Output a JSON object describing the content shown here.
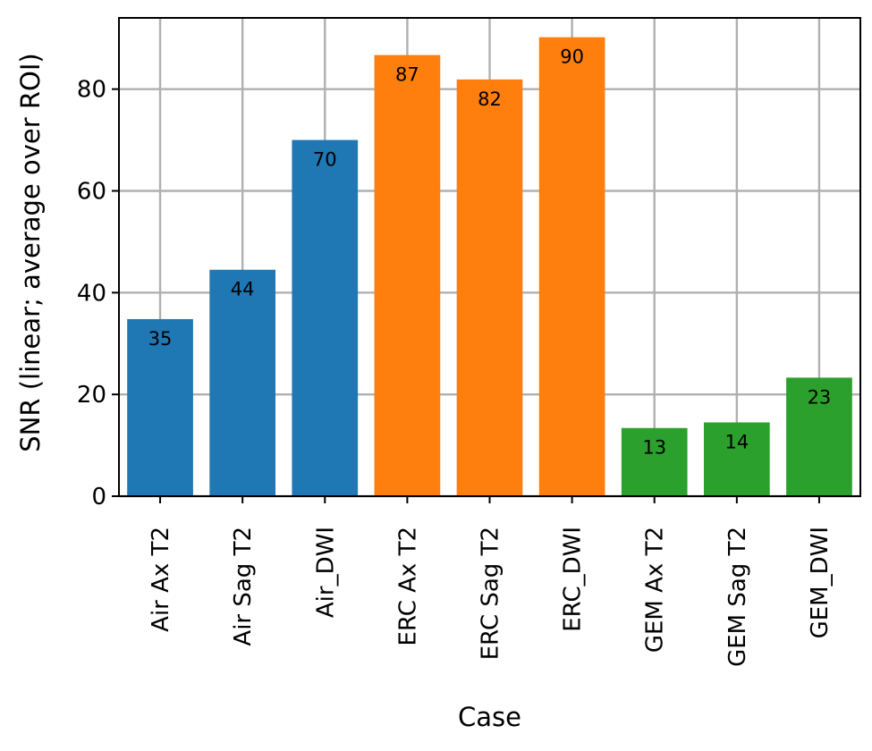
{
  "chart_data": {
    "type": "bar",
    "title": "",
    "xlabel": "Case",
    "ylabel": "SNR (linear; average over ROI)",
    "ylim": [
      0,
      94
    ],
    "yticks": [
      0,
      20,
      40,
      60,
      80
    ],
    "grid": true,
    "categories": [
      "Air Ax T2",
      "Air Sag T2",
      "Air_DWI",
      "ERC Ax T2",
      "ERC Sag T2",
      "ERC_DWI",
      "GEM Ax T2",
      "GEM Sag T2",
      "GEM_DWI"
    ],
    "values": [
      34.8,
      44.5,
      70.0,
      86.7,
      81.9,
      90.2,
      13.4,
      14.5,
      23.3
    ],
    "data_labels": [
      "35",
      "44",
      "70",
      "87",
      "82",
      "90",
      "13",
      "14",
      "23"
    ],
    "colors": [
      "#1f77b4",
      "#1f77b4",
      "#1f77b4",
      "#ff7f0e",
      "#ff7f0e",
      "#ff7f0e",
      "#2ca02c",
      "#2ca02c",
      "#2ca02c"
    ]
  }
}
